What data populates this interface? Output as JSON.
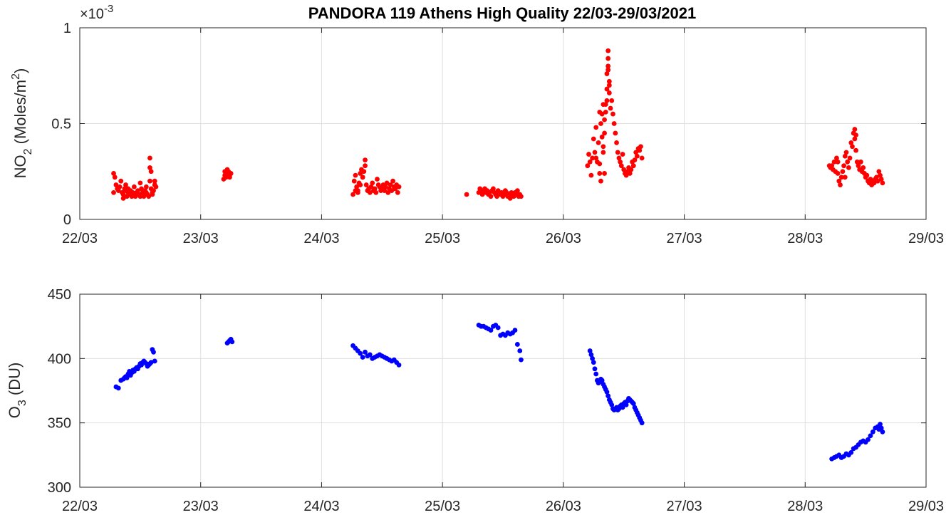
{
  "chart_data": [
    {
      "type": "scatter",
      "title": "PANDORA 119 Athens High Quality 22/03-29/03/2021",
      "ylabel": {
        "main": "NO",
        "sub": "2",
        "unit_pre": " (Moles/m",
        "unit_sup": "2",
        "unit_post": ")"
      },
      "exponent_label": {
        "base": "×10",
        "power": "-3"
      },
      "x_ticks": [
        "22/03",
        "23/03",
        "24/03",
        "25/03",
        "26/03",
        "27/03",
        "28/03",
        "29/03"
      ],
      "x_range_days": [
        22,
        29
      ],
      "ylim": [
        0,
        1
      ],
      "y_ticks": [
        0,
        0.5,
        1
      ],
      "y_tick_labels": [
        "0",
        "0.5",
        "1"
      ],
      "grid": true,
      "color": "#ff0000",
      "series": [
        {
          "x": [
            22.28,
            22.28,
            22.29,
            22.3,
            22.31,
            22.32,
            22.33,
            22.34,
            22.35,
            22.36,
            22.37,
            22.38,
            22.39,
            22.4,
            22.41,
            22.42,
            22.43,
            22.44,
            22.45,
            22.46,
            22.47,
            22.48,
            22.49,
            22.5,
            22.51,
            22.52,
            22.53,
            22.54,
            22.55,
            22.56,
            22.57,
            22.58,
            22.59,
            22.6,
            22.61,
            22.62,
            22.63,
            22.36,
            22.38,
            22.4,
            22.45,
            22.5,
            22.55,
            22.58,
            22.58,
            22.59,
            22.6,
            22.62
          ],
          "y": [
            0.14,
            0.24,
            0.22,
            0.18,
            0.16,
            0.15,
            0.17,
            0.2,
            0.14,
            0.13,
            0.16,
            0.15,
            0.12,
            0.14,
            0.13,
            0.15,
            0.12,
            0.14,
            0.13,
            0.12,
            0.14,
            0.15,
            0.13,
            0.12,
            0.16,
            0.14,
            0.12,
            0.15,
            0.17,
            0.13,
            0.12,
            0.2,
            0.16,
            0.14,
            0.15,
            0.18,
            0.17,
            0.11,
            0.18,
            0.16,
            0.17,
            0.19,
            0.14,
            0.32,
            0.27,
            0.25,
            0.13,
            0.2
          ]
        },
        {
          "x": [
            23.19,
            23.2,
            23.21,
            23.22,
            23.23,
            23.24,
            23.25,
            23.2,
            23.22,
            23.24
          ],
          "y": [
            0.21,
            0.23,
            0.22,
            0.24,
            0.25,
            0.23,
            0.24,
            0.25,
            0.26,
            0.22
          ]
        },
        {
          "x": [
            24.26,
            24.27,
            24.28,
            24.29,
            24.3,
            24.31,
            24.32,
            24.33,
            24.34,
            24.35,
            24.36,
            24.37,
            24.38,
            24.39,
            24.4,
            24.41,
            24.42,
            24.43,
            24.44,
            24.45,
            24.46,
            24.47,
            24.48,
            24.49,
            24.5,
            24.51,
            24.52,
            24.53,
            24.54,
            24.55,
            24.56,
            24.57,
            24.58,
            24.59,
            24.6,
            24.61,
            24.62,
            24.63,
            24.64,
            24.3,
            24.34,
            24.36,
            24.28,
            24.32
          ],
          "y": [
            0.13,
            0.2,
            0.23,
            0.17,
            0.15,
            0.19,
            0.24,
            0.26,
            0.22,
            0.25,
            0.31,
            0.18,
            0.15,
            0.16,
            0.14,
            0.17,
            0.19,
            0.15,
            0.16,
            0.14,
            0.21,
            0.18,
            0.17,
            0.15,
            0.16,
            0.18,
            0.15,
            0.17,
            0.19,
            0.14,
            0.16,
            0.18,
            0.15,
            0.2,
            0.17,
            0.16,
            0.18,
            0.14,
            0.17,
            0.14,
            0.22,
            0.28,
            0.15,
            0.18
          ]
        },
        {
          "x": [
            25.2,
            25.3,
            25.31,
            25.32,
            25.33,
            25.34,
            25.35,
            25.36,
            25.37,
            25.38,
            25.39,
            25.4,
            25.41,
            25.42,
            25.43,
            25.44,
            25.45,
            25.46,
            25.47,
            25.48,
            25.49,
            25.5,
            25.51,
            25.52,
            25.53,
            25.54,
            25.55,
            25.56,
            25.57,
            25.58,
            25.59,
            25.6,
            25.61,
            25.62,
            25.63,
            25.64,
            25.65
          ],
          "y": [
            0.13,
            0.14,
            0.16,
            0.15,
            0.13,
            0.15,
            0.16,
            0.14,
            0.15,
            0.13,
            0.14,
            0.12,
            0.15,
            0.16,
            0.14,
            0.13,
            0.12,
            0.15,
            0.14,
            0.13,
            0.14,
            0.12,
            0.13,
            0.15,
            0.14,
            0.12,
            0.13,
            0.11,
            0.14,
            0.13,
            0.12,
            0.14,
            0.13,
            0.15,
            0.12,
            0.13,
            0.12
          ]
        },
        {
          "x": [
            26.2,
            26.21,
            26.22,
            26.23,
            26.24,
            26.25,
            26.26,
            26.27,
            26.28,
            26.29,
            26.3,
            26.3,
            26.31,
            26.31,
            26.32,
            26.32,
            26.33,
            26.33,
            26.34,
            26.34,
            26.35,
            26.35,
            26.36,
            26.36,
            26.37,
            26.37,
            26.38,
            26.38,
            26.39,
            26.4,
            26.41,
            26.42,
            26.43,
            26.44,
            26.45,
            26.46,
            26.47,
            26.48,
            26.49,
            26.5,
            26.51,
            26.52,
            26.53,
            26.54,
            26.55,
            26.56,
            26.57,
            26.58,
            26.59,
            26.6,
            26.61,
            26.62,
            26.63,
            26.64,
            26.65,
            26.27,
            26.3,
            26.33,
            26.36,
            26.37,
            26.37,
            26.38,
            26.34
          ],
          "y": [
            0.28,
            0.34,
            0.3,
            0.23,
            0.32,
            0.42,
            0.35,
            0.48,
            0.3,
            0.4,
            0.24,
            0.56,
            0.2,
            0.5,
            0.43,
            0.55,
            0.35,
            0.6,
            0.45,
            0.52,
            0.56,
            0.6,
            0.68,
            0.62,
            0.88,
            0.84,
            0.72,
            0.66,
            0.58,
            0.62,
            0.55,
            0.5,
            0.45,
            0.4,
            0.35,
            0.32,
            0.3,
            0.28,
            0.34,
            0.26,
            0.24,
            0.23,
            0.25,
            0.27,
            0.24,
            0.26,
            0.3,
            0.28,
            0.31,
            0.35,
            0.33,
            0.37,
            0.36,
            0.38,
            0.32,
            0.32,
            0.29,
            0.38,
            0.76,
            0.8,
            0.78,
            0.7,
            0.24
          ]
        },
        {
          "x": [
            28.2,
            28.21,
            28.22,
            28.23,
            28.24,
            28.25,
            28.26,
            28.27,
            28.28,
            28.29,
            28.3,
            28.31,
            28.32,
            28.33,
            28.34,
            28.35,
            28.36,
            28.37,
            28.38,
            28.39,
            28.4,
            28.41,
            28.42,
            28.43,
            28.44,
            28.45,
            28.46,
            28.47,
            28.48,
            28.49,
            28.5,
            28.51,
            28.52,
            28.53,
            28.54,
            28.55,
            28.56,
            28.57,
            28.58,
            28.59,
            28.6,
            28.61,
            28.62,
            28.63,
            28.64,
            28.27,
            28.33,
            28.41,
            28.42
          ],
          "y": [
            0.28,
            0.27,
            0.28,
            0.26,
            0.3,
            0.25,
            0.32,
            0.24,
            0.2,
            0.18,
            0.22,
            0.25,
            0.28,
            0.33,
            0.35,
            0.3,
            0.27,
            0.32,
            0.4,
            0.38,
            0.45,
            0.42,
            0.36,
            0.3,
            0.28,
            0.26,
            0.3,
            0.25,
            0.27,
            0.24,
            0.22,
            0.23,
            0.2,
            0.19,
            0.21,
            0.18,
            0.2,
            0.19,
            0.21,
            0.22,
            0.2,
            0.25,
            0.23,
            0.21,
            0.19,
            0.3,
            0.22,
            0.47,
            0.44
          ]
        }
      ]
    },
    {
      "type": "scatter",
      "title": "",
      "ylabel": {
        "main": "O",
        "sub": "3",
        "unit_pre": " (DU)",
        "unit_sup": "",
        "unit_post": ""
      },
      "x_ticks": [
        "22/03",
        "23/03",
        "24/03",
        "25/03",
        "26/03",
        "27/03",
        "28/03",
        "29/03"
      ],
      "x_range_days": [
        22,
        29
      ],
      "ylim": [
        300,
        450
      ],
      "y_ticks": [
        300,
        350,
        400,
        450
      ],
      "y_tick_labels": [
        "300",
        "350",
        "400",
        "450"
      ],
      "grid": true,
      "color": "#0000ff",
      "series": [
        {
          "x": [
            22.3,
            22.32,
            22.34,
            22.36,
            22.37,
            22.38,
            22.39,
            22.4,
            22.41,
            22.42,
            22.43,
            22.44,
            22.45,
            22.46,
            22.47,
            22.48,
            22.49,
            22.5,
            22.51,
            22.52,
            22.53,
            22.54,
            22.55,
            22.56,
            22.57,
            22.58,
            22.59,
            22.6,
            22.61,
            22.62
          ],
          "y": [
            378,
            377,
            383,
            384,
            385,
            386,
            385,
            388,
            390,
            387,
            389,
            391,
            390,
            392,
            393,
            392,
            394,
            396,
            395,
            397,
            398,
            397,
            396,
            394,
            395,
            396,
            397,
            407,
            405,
            398
          ]
        },
        {
          "x": [
            23.22,
            23.23,
            23.24,
            23.25,
            23.26
          ],
          "y": [
            412,
            413,
            414,
            415,
            413
          ]
        },
        {
          "x": [
            24.26,
            24.28,
            24.3,
            24.32,
            24.34,
            24.36,
            24.38,
            24.4,
            24.42,
            24.44,
            24.46,
            24.48,
            24.5,
            24.52,
            24.54,
            24.56,
            24.58,
            24.6,
            24.62,
            24.64
          ],
          "y": [
            410,
            408,
            406,
            404,
            401,
            405,
            402,
            403,
            400,
            401,
            402,
            403,
            402,
            401,
            400,
            399,
            398,
            399,
            397,
            395
          ]
        },
        {
          "x": [
            25.3,
            25.32,
            25.34,
            25.36,
            25.38,
            25.4,
            25.42,
            25.44,
            25.46,
            25.48,
            25.5,
            25.52,
            25.54,
            25.56,
            25.58,
            25.6,
            25.62,
            25.64,
            25.65
          ],
          "y": [
            426,
            425,
            425,
            424,
            423,
            422,
            425,
            426,
            424,
            418,
            419,
            418,
            420,
            419,
            420,
            422,
            411,
            406,
            399
          ]
        },
        {
          "x": [
            26.22,
            26.23,
            26.24,
            26.25,
            26.26,
            26.27,
            26.28,
            26.29,
            26.3,
            26.31,
            26.32,
            26.33,
            26.34,
            26.35,
            26.36,
            26.37,
            26.38,
            26.39,
            26.4,
            26.41,
            26.42,
            26.43,
            26.44,
            26.45,
            26.46,
            26.47,
            26.48,
            26.49,
            26.5,
            26.51,
            26.52,
            26.53,
            26.54,
            26.55,
            26.56,
            26.57,
            26.58,
            26.59,
            26.6,
            26.61,
            26.62,
            26.63,
            26.64,
            26.65
          ],
          "y": [
            406,
            403,
            400,
            397,
            392,
            388,
            383,
            381,
            382,
            384,
            383,
            380,
            378,
            376,
            374,
            371,
            368,
            366,
            364,
            361,
            360,
            361,
            362,
            360,
            361,
            363,
            364,
            362,
            365,
            366,
            364,
            367,
            369,
            368,
            367,
            366,
            365,
            362,
            360,
            358,
            356,
            354,
            352,
            350
          ]
        },
        {
          "x": [
            28.22,
            28.24,
            28.26,
            28.28,
            28.3,
            28.32,
            28.34,
            28.36,
            28.38,
            28.4,
            28.42,
            28.44,
            28.46,
            28.48,
            28.5,
            28.52,
            28.54,
            28.56,
            28.58,
            28.6,
            28.61,
            28.62,
            28.63,
            28.64
          ],
          "y": [
            322,
            323,
            324,
            325,
            323,
            324,
            326,
            325,
            327,
            330,
            331,
            333,
            335,
            336,
            335,
            337,
            340,
            343,
            346,
            347,
            345,
            349,
            346,
            343
          ]
        }
      ]
    }
  ]
}
